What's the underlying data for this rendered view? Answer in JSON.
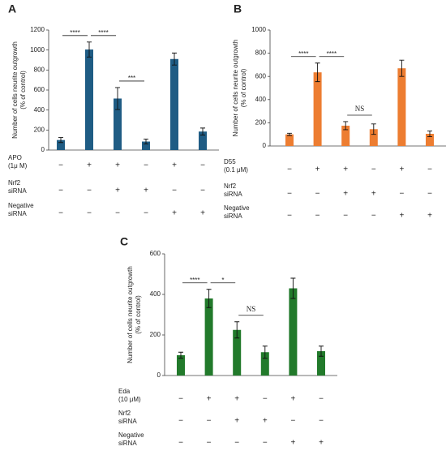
{
  "chart_data": [
    {
      "type": "bar",
      "panel": "A",
      "y_label": [
        "Number of cells neurite outgrowth",
        "(% of control)"
      ],
      "color": "#1f5c84",
      "values": [
        100,
        1005,
        515,
        85,
        910,
        185
      ],
      "errors": [
        25,
        75,
        110,
        25,
        60,
        35
      ],
      "ylim": [
        0,
        1200
      ],
      "yticks": [
        0,
        200,
        400,
        600,
        800,
        1000,
        1200
      ],
      "annotations": [
        "****",
        "****",
        "***"
      ],
      "conditions": [
        {
          "label": [
            "APO",
            "(1μ M)"
          ],
          "signs": [
            "−",
            "+",
            "+",
            "−",
            "+",
            "−"
          ]
        },
        {
          "label": [
            "Nrf2",
            "siRNA"
          ],
          "signs": [
            "−",
            "−",
            "+",
            "+",
            "−",
            "−"
          ]
        },
        {
          "label": [
            "Negative",
            "siRNA"
          ],
          "signs": [
            "−",
            "−",
            "−",
            "−",
            "+",
            "+"
          ]
        }
      ]
    },
    {
      "type": "bar",
      "panel": "B",
      "y_label": [
        "Number of cells neurite outgrowth",
        "(% of control)"
      ],
      "color": "#ed7d31",
      "values": [
        100,
        635,
        175,
        145,
        670,
        105
      ],
      "errors": [
        10,
        80,
        35,
        45,
        70,
        25
      ],
      "ylim": [
        0,
        1000
      ],
      "yticks": [
        0,
        200,
        400,
        600,
        800,
        1000
      ],
      "annotations": [
        "****",
        "****",
        "NS"
      ],
      "conditions": [
        {
          "label": [
            "D55",
            "(0.1 μM)"
          ],
          "signs": [
            "−",
            "+",
            "+",
            "−",
            "+",
            "−"
          ]
        },
        {
          "label": [
            "Nrf2",
            "siRNA"
          ],
          "signs": [
            "−",
            "−",
            "+",
            "+",
            "−",
            "−"
          ]
        },
        {
          "label": [
            "Negative",
            "siRNA"
          ],
          "signs": [
            "−",
            "−",
            "−",
            "−",
            "+",
            "+"
          ]
        }
      ]
    },
    {
      "type": "bar",
      "panel": "C",
      "y_label": [
        "Number of cells neurite outgrowth",
        "(% of control)"
      ],
      "color": "#227a2b",
      "values": [
        100,
        380,
        225,
        115,
        430,
        120
      ],
      "errors": [
        15,
        45,
        40,
        30,
        50,
        25
      ],
      "ylim": [
        0,
        600
      ],
      "yticks": [
        0,
        200,
        400,
        600
      ],
      "annotations": [
        "****",
        "*",
        "NS"
      ],
      "conditions": [
        {
          "label": [
            "Eda",
            "(10 μM)"
          ],
          "signs": [
            "−",
            "+",
            "+",
            "−",
            "+",
            "−"
          ]
        },
        {
          "label": [
            "Nrf2",
            "siRNA"
          ],
          "signs": [
            "−",
            "−",
            "+",
            "+",
            "−",
            "−"
          ]
        },
        {
          "label": [
            "Negative",
            "siRNA"
          ],
          "signs": [
            "−",
            "−",
            "−",
            "−",
            "+",
            "+"
          ]
        }
      ]
    }
  ]
}
